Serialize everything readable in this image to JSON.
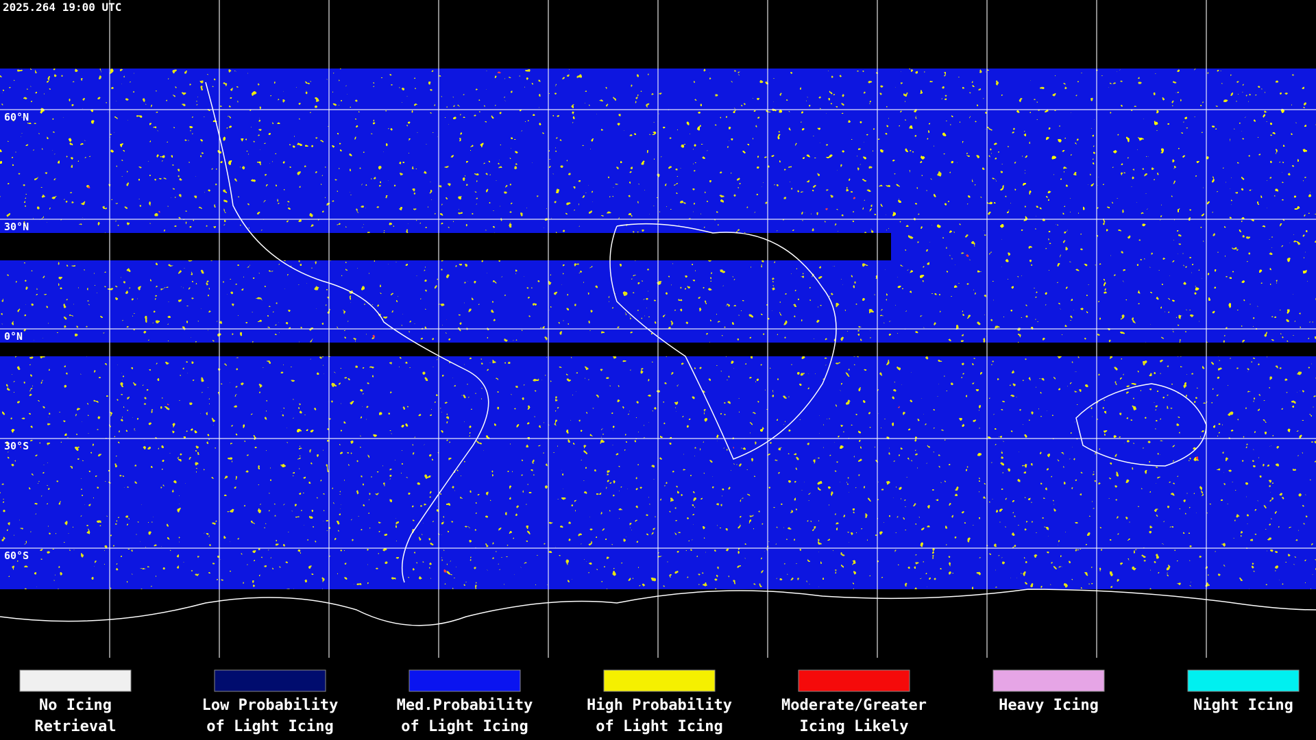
{
  "header": {
    "timestamp": "2025.264 19:00 UTC"
  },
  "latitude_labels": [
    "60°N",
    "30°N",
    "0°N",
    "30°S",
    "60°S"
  ],
  "legend": [
    {
      "lines": [
        "No Icing",
        "Retrieval"
      ],
      "color": "#f0f0f0"
    },
    {
      "lines": [
        "Low Probability",
        "of Light Icing"
      ],
      "color": "#000c6e"
    },
    {
      "lines": [
        "Med.Probability",
        "of Light Icing"
      ],
      "color": "#0a14f0"
    },
    {
      "lines": [
        "High Probability",
        "of Light Icing"
      ],
      "color": "#f5f000"
    },
    {
      "lines": [
        "Moderate/Greater",
        "Icing Likely"
      ],
      "color": "#f50a0a"
    },
    {
      "lines": [
        "Heavy Icing"
      ],
      "color": "#e6a5e6"
    },
    {
      "lines": [
        "Night Icing"
      ],
      "color": "#00f0f0"
    }
  ]
}
